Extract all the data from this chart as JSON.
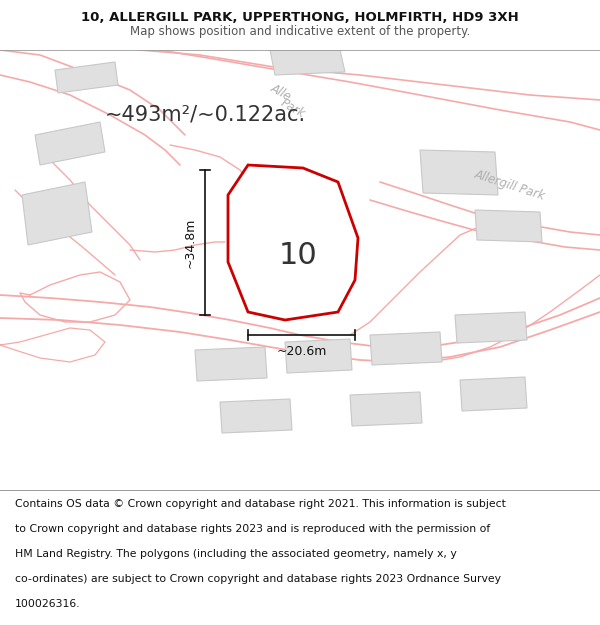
{
  "title_line1": "10, ALLERGILL PARK, UPPERTHONG, HOLMFIRTH, HD9 3XH",
  "title_line2": "Map shows position and indicative extent of the property.",
  "area_text": "~493m²/~0.122ac.",
  "property_number": "10",
  "dim_width": "~20.6m",
  "dim_height": "~34.8m",
  "footer_lines": [
    "Contains OS data © Crown copyright and database right 2021. This information is subject",
    "to Crown copyright and database rights 2023 and is reproduced with the permission of",
    "HM Land Registry. The polygons (including the associated geometry, namely x, y",
    "co-ordinates) are subject to Crown copyright and database rights 2023 Ordnance Survey",
    "100026316."
  ],
  "map_bg": "#ffffff",
  "road_line_color": "#f5aaaa",
  "building_color": "#e0e0e0",
  "building_stroke": "#c8c8c8",
  "plot_color": "#cc0000",
  "road_label_color": "#b0b0b0",
  "dim_color": "#111111",
  "text_color": "#333333",
  "footer_color": "#111111",
  "title_fontsize": 9.5,
  "subtitle_fontsize": 8.5,
  "footer_fontsize": 7.8,
  "area_fontsize": 15,
  "property_number_fontsize": 22,
  "dim_fontsize": 9
}
